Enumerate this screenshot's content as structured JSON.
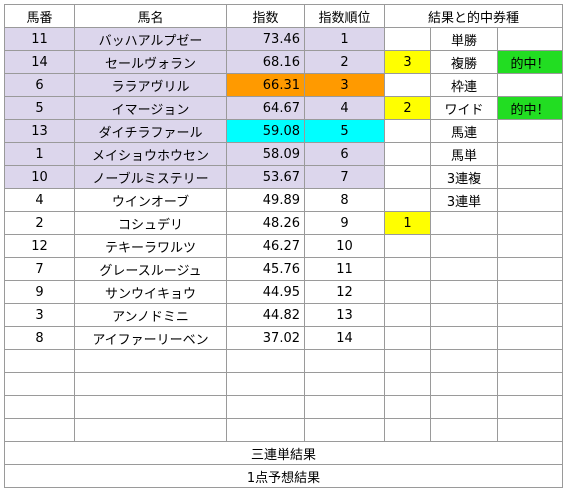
{
  "headers": {
    "number": "馬番",
    "name": "馬名",
    "index": "指数",
    "rank": "指数順位",
    "results": "結果と的中券種"
  },
  "rows": [
    {
      "number": "11",
      "name": "バッハアルプゼー",
      "index": "73.46",
      "rank": "1",
      "result": "",
      "ticket": "単勝",
      "hit": ""
    },
    {
      "number": "14",
      "name": "セールヴォラン",
      "index": "68.16",
      "rank": "2",
      "result": "3",
      "ticket": "複勝",
      "hit": "的中！"
    },
    {
      "number": "6",
      "name": "ララアヴリル",
      "index": "66.31",
      "rank": "3",
      "result": "",
      "ticket": "枠連",
      "hit": ""
    },
    {
      "number": "5",
      "name": "イマージョン",
      "index": "64.67",
      "rank": "4",
      "result": "2",
      "ticket": "ワイド",
      "hit": "的中！"
    },
    {
      "number": "13",
      "name": "ダイチラファール",
      "index": "59.08",
      "rank": "5",
      "result": "",
      "ticket": "馬連",
      "hit": ""
    },
    {
      "number": "1",
      "name": "メイショウホウセン",
      "index": "58.09",
      "rank": "6",
      "result": "",
      "ticket": "馬単",
      "hit": ""
    },
    {
      "number": "10",
      "name": "ノーブルミステリー",
      "index": "53.67",
      "rank": "7",
      "result": "",
      "ticket": "3連複",
      "hit": ""
    },
    {
      "number": "4",
      "name": "ウインオーブ",
      "index": "49.89",
      "rank": "8",
      "result": "",
      "ticket": "3連単",
      "hit": ""
    },
    {
      "number": "2",
      "name": "コシュデリ",
      "index": "48.26",
      "rank": "9",
      "result": "1",
      "ticket": "",
      "hit": ""
    },
    {
      "number": "12",
      "name": "テキーラワルツ",
      "index": "46.27",
      "rank": "10",
      "result": "",
      "ticket": "",
      "hit": ""
    },
    {
      "number": "7",
      "name": "グレースルージュ",
      "index": "45.76",
      "rank": "11",
      "result": "",
      "ticket": "",
      "hit": ""
    },
    {
      "number": "9",
      "name": "サンウイキョウ",
      "index": "44.95",
      "rank": "12",
      "result": "",
      "ticket": "",
      "hit": ""
    },
    {
      "number": "3",
      "name": "アンノドミニ",
      "index": "44.82",
      "rank": "13",
      "result": "",
      "ticket": "",
      "hit": ""
    },
    {
      "number": "8",
      "name": "アイファーリーベン",
      "index": "37.02",
      "rank": "14",
      "result": "",
      "ticket": "",
      "hit": ""
    }
  ],
  "footer": {
    "trifecta_label": "三連単結果",
    "one_point_label": "1点予想結果"
  },
  "colors": {
    "top_rows_bg": "#dcd6ec",
    "rank3_highlight": "#ff9a00",
    "rank5_highlight": "#00ffff",
    "result_finish": "#ffff00",
    "hit_badge": "#22dd22"
  }
}
